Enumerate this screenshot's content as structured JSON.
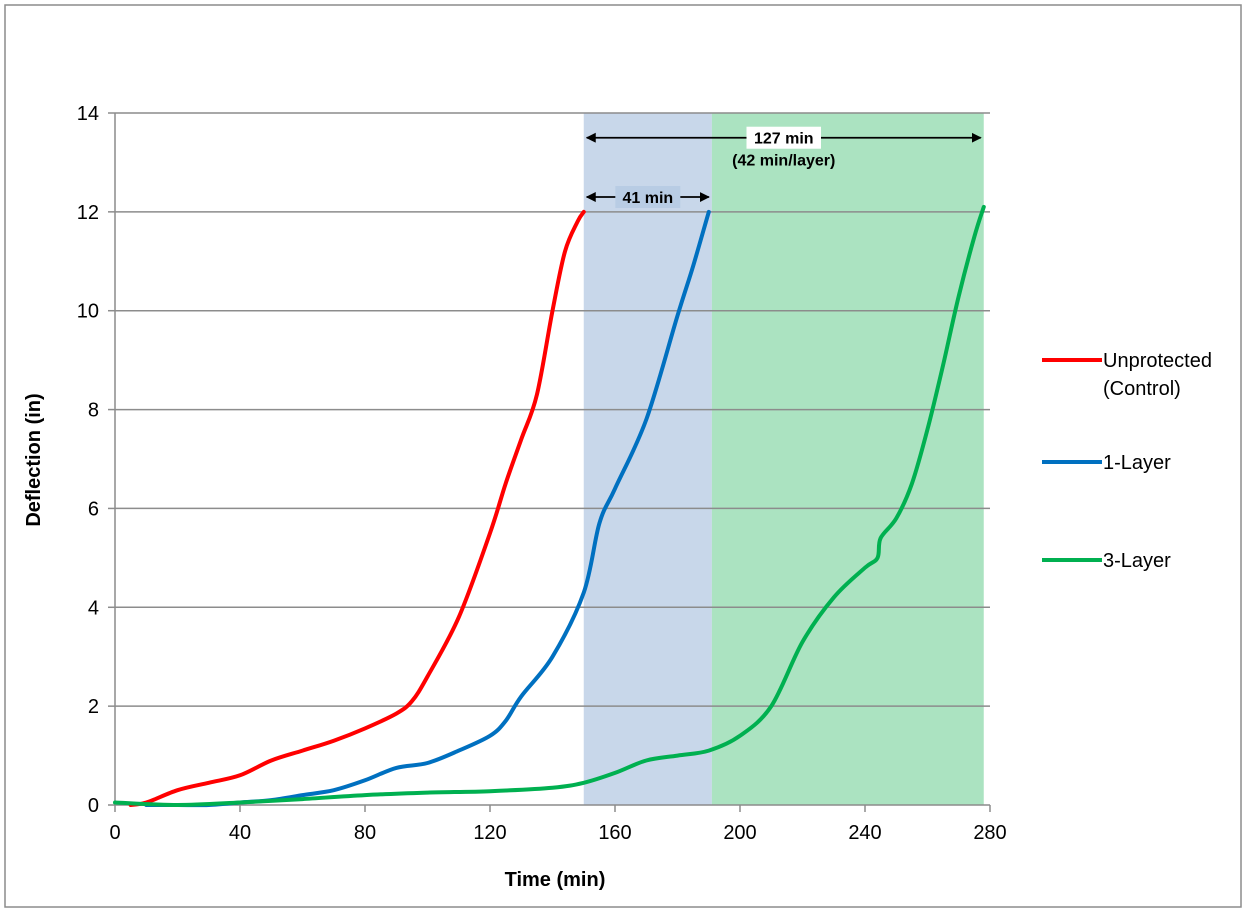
{
  "chart_data": {
    "type": "line",
    "title": "",
    "xlabel": "Time (min)",
    "ylabel": "Deflection (in)",
    "xlim": [
      0,
      280
    ],
    "ylim": [
      0,
      14
    ],
    "xticks": [
      0,
      40,
      80,
      120,
      160,
      200,
      240,
      280
    ],
    "yticks": [
      0,
      2,
      4,
      6,
      8,
      10,
      12,
      14
    ],
    "grid": "horizontal",
    "legend_position": "right",
    "series": [
      {
        "name": "Unprotected\n(Control)",
        "color": "#ff0000",
        "x": [
          5,
          10,
          20,
          30,
          40,
          50,
          60,
          70,
          80,
          90,
          95,
          100,
          110,
          120,
          125,
          130,
          135,
          140,
          144,
          148,
          150
        ],
        "y": [
          0,
          0.05,
          0.3,
          0.45,
          0.6,
          0.9,
          1.1,
          1.3,
          1.55,
          1.85,
          2.1,
          2.6,
          3.8,
          5.5,
          6.5,
          7.4,
          8.3,
          10.0,
          11.2,
          11.8,
          12.0
        ]
      },
      {
        "name": "1-Layer",
        "color": "#0070c0",
        "x": [
          10,
          20,
          30,
          40,
          50,
          60,
          70,
          80,
          90,
          100,
          110,
          120,
          125,
          130,
          140,
          150,
          155,
          160,
          170,
          180,
          185,
          190
        ],
        "y": [
          0,
          0,
          0,
          0.05,
          0.1,
          0.2,
          0.3,
          0.5,
          0.75,
          0.85,
          1.1,
          1.4,
          1.7,
          2.2,
          3.0,
          4.3,
          5.7,
          6.4,
          7.8,
          9.9,
          10.9,
          12.0
        ]
      },
      {
        "name": "3-Layer",
        "color": "#00b050",
        "x": [
          0,
          20,
          40,
          60,
          80,
          100,
          120,
          140,
          150,
          160,
          170,
          180,
          190,
          200,
          210,
          220,
          230,
          240,
          244,
          245,
          250,
          255,
          260,
          265,
          270,
          275,
          278
        ],
        "y": [
          0.05,
          0,
          0.05,
          0.12,
          0.2,
          0.25,
          0.28,
          0.35,
          0.45,
          0.65,
          0.9,
          1.0,
          1.1,
          1.4,
          2.0,
          3.3,
          4.2,
          4.8,
          5.0,
          5.4,
          5.8,
          6.5,
          7.6,
          8.9,
          10.3,
          11.5,
          12.1
        ]
      }
    ],
    "shaded_regions": [
      {
        "x0": 150,
        "x1": 191,
        "color": "#b8cce4"
      },
      {
        "x0": 191,
        "x1": 278,
        "color": "#93dbb0"
      }
    ],
    "annotations": [
      {
        "text": "41 min",
        "x0": 150,
        "x1": 191,
        "y": 12.3
      },
      {
        "text": "127 min",
        "text2": "(42 min/layer)",
        "x0": 150,
        "x1": 278,
        "y": 13.5
      }
    ]
  }
}
